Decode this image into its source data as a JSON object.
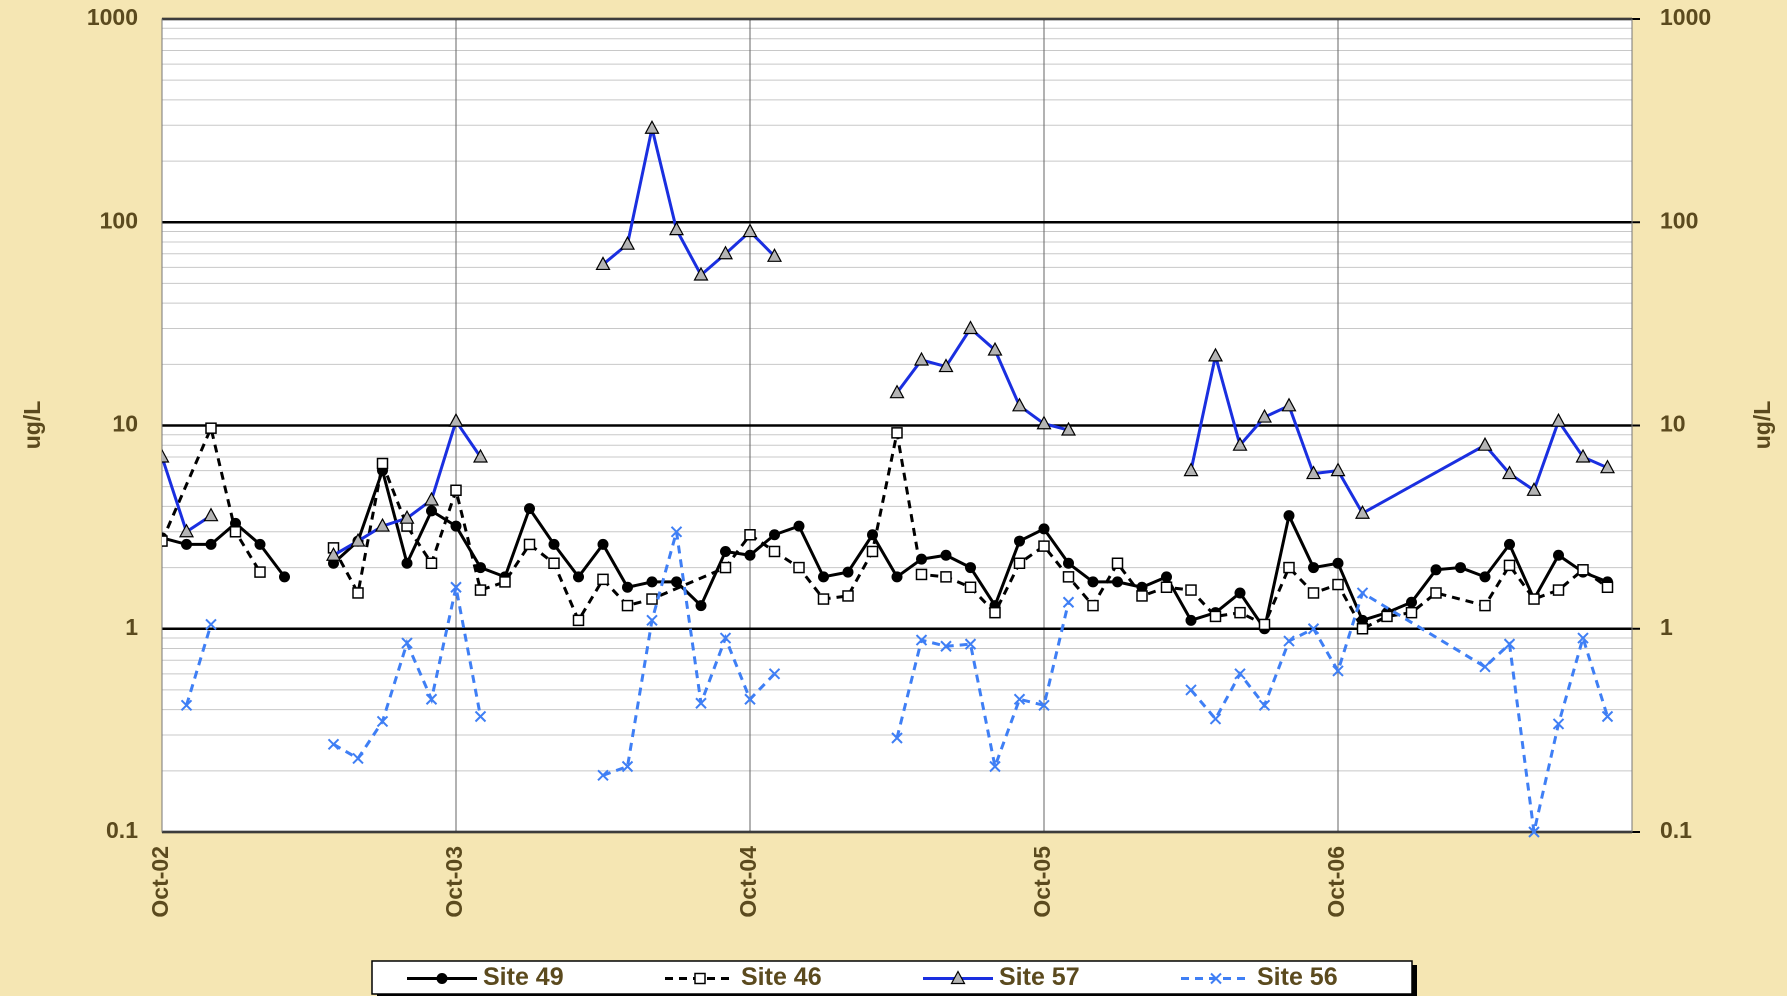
{
  "chart_data": {
    "type": "line",
    "ylabel": "ug/L",
    "y2label": "ug/L",
    "log_scale": true,
    "grid": true,
    "minor_grid": true,
    "legend": "bottom",
    "xlim": [
      "2002-10",
      "2007-10"
    ],
    "xticks": [
      {
        "value": "2002-10",
        "label": "Oct-02"
      },
      {
        "value": "2003-10",
        "label": "Oct-03"
      },
      {
        "value": "2004-10",
        "label": "Oct-04"
      },
      {
        "value": "2005-10",
        "label": "Oct-05"
      },
      {
        "value": "2006-10",
        "label": "Oct-06"
      }
    ],
    "ylim": [
      0.1,
      1000
    ],
    "yticks": [
      0.1,
      1,
      10,
      100,
      1000
    ],
    "y2lim": [
      0.1,
      1000
    ],
    "y2ticks": [
      0.1,
      1,
      10,
      100,
      1000
    ],
    "series": [
      {
        "name": "Site 49",
        "color": "#000000",
        "line_style": "solid",
        "marker": "circle",
        "x": [
          "2002-10",
          "2002-11",
          "2002-12",
          "2003-01",
          "2003-02",
          "2003-03",
          "2003-04",
          "2003-05",
          "2003-06",
          "2003-07",
          "2003-08",
          "2003-09",
          "2003-10",
          "2003-11",
          "2003-12",
          "2004-01",
          "2004-02",
          "2004-03",
          "2004-04",
          "2004-05",
          "2004-06",
          "2004-07",
          "2004-08",
          "2004-09",
          "2004-10",
          "2004-11",
          "2004-12",
          "2005-01",
          "2005-02",
          "2005-03",
          "2005-04",
          "2005-05",
          "2005-06",
          "2005-07",
          "2005-08",
          "2005-09",
          "2005-10",
          "2005-11",
          "2005-12",
          "2006-01",
          "2006-02",
          "2006-03",
          "2006-04",
          "2006-05",
          "2006-06",
          "2006-07",
          "2006-08",
          "2006-09",
          "2006-10",
          "2006-11",
          "2006-12",
          "2007-01",
          "2007-02",
          "2007-03",
          "2007-04",
          "2007-05",
          "2007-06",
          "2007-07",
          "2007-08",
          "2007-09"
        ],
        "values": [
          2.8,
          2.6,
          2.6,
          3.3,
          2.6,
          1.8,
          null,
          2.1,
          2.7,
          6.0,
          2.1,
          3.8,
          3.2,
          2.0,
          1.8,
          3.9,
          2.6,
          1.8,
          2.6,
          1.6,
          1.7,
          1.7,
          1.3,
          2.4,
          2.3,
          2.9,
          3.2,
          1.8,
          1.9,
          2.9,
          1.8,
          2.2,
          2.3,
          2.0,
          1.3,
          2.7,
          3.1,
          2.1,
          1.7,
          1.7,
          1.6,
          1.8,
          1.1,
          1.2,
          1.5,
          1.0,
          3.6,
          2.0,
          2.1,
          1.1,
          1.2,
          1.35,
          1.95,
          2.0,
          1.8,
          2.6,
          1.4,
          2.3,
          1.9,
          1.7
        ]
      },
      {
        "name": "Site 46",
        "color": "#000000",
        "line_style": "dashed",
        "marker": "square",
        "x": [
          "2002-10",
          "2002-12",
          "2003-01",
          "2003-02",
          "2003-03",
          "2003-05",
          "2003-06",
          "2003-07",
          "2003-08",
          "2003-09",
          "2003-10",
          "2003-11",
          "2003-12",
          "2004-01",
          "2004-02",
          "2004-03",
          "2004-04",
          "2004-05",
          "2004-06",
          "2004-09",
          "2004-10",
          "2004-11",
          "2004-12",
          "2005-01",
          "2005-02",
          "2005-03",
          "2005-04",
          "2005-05",
          "2005-06",
          "2005-07",
          "2005-08",
          "2005-09",
          "2005-10",
          "2005-11",
          "2005-12",
          "2006-01",
          "2006-02",
          "2006-03",
          "2006-04",
          "2006-05",
          "2006-06",
          "2006-07",
          "2006-08",
          "2006-09",
          "2006-10",
          "2006-11",
          "2006-12",
          "2007-01",
          "2007-02",
          "2007-04",
          "2007-05",
          "2007-06",
          "2007-07",
          "2007-08",
          "2007-09"
        ],
        "values": [
          2.7,
          9.7,
          3.0,
          1.9,
          null,
          2.5,
          1.5,
          6.5,
          3.2,
          2.1,
          4.8,
          1.55,
          1.7,
          2.6,
          2.1,
          1.1,
          1.75,
          1.3,
          1.4,
          2.0,
          2.9,
          2.4,
          2.0,
          1.4,
          1.45,
          2.4,
          9.2,
          1.85,
          1.8,
          1.6,
          1.2,
          2.1,
          2.55,
          1.8,
          1.3,
          2.1,
          1.45,
          1.6,
          1.55,
          1.15,
          1.2,
          1.05,
          2.0,
          1.5,
          1.65,
          1.0,
          1.15,
          1.2,
          1.5,
          1.3,
          2.05,
          1.4,
          1.55,
          1.95,
          1.6
        ]
      },
      {
        "name": "Site 57",
        "color": "#1a2fe0",
        "line_style": "solid",
        "marker": "triangle",
        "x": [
          "2002-10",
          "2002-11",
          "2002-12",
          "2003-01",
          "2003-05",
          "2003-06",
          "2003-07",
          "2003-08",
          "2003-09",
          "2003-10",
          "2003-11",
          "2003-12",
          "2004-04",
          "2004-05",
          "2004-06",
          "2004-07",
          "2004-08",
          "2004-09",
          "2004-10",
          "2004-11",
          "2004-12",
          "2005-04",
          "2005-05",
          "2005-06",
          "2005-07",
          "2005-08",
          "2005-09",
          "2005-10",
          "2005-11",
          "2005-12",
          "2006-04",
          "2006-05",
          "2006-06",
          "2006-07",
          "2006-08",
          "2006-09",
          "2006-10",
          "2006-11",
          "2007-04",
          "2007-05",
          "2007-06",
          "2007-07",
          "2007-08",
          "2007-09"
        ],
        "values": [
          7.0,
          3.0,
          3.6,
          null,
          2.3,
          2.7,
          3.2,
          3.5,
          4.3,
          10.5,
          7.0,
          null,
          62,
          78,
          290,
          92,
          55,
          70,
          90,
          68,
          null,
          14.5,
          21,
          19.5,
          30,
          23.5,
          12.5,
          10.2,
          9.5,
          null,
          6.0,
          22,
          8.0,
          11,
          12.5,
          5.8,
          6.0,
          3.7,
          8.0,
          5.8,
          4.8,
          10.5,
          7.0,
          6.2
        ]
      },
      {
        "name": "Site 56",
        "color": "#3f7ff5",
        "line_style": "dashed",
        "marker": "x",
        "x": [
          "2002-11",
          "2002-12",
          "2003-01",
          "2003-05",
          "2003-06",
          "2003-07",
          "2003-08",
          "2003-09",
          "2003-10",
          "2003-11",
          "2003-12",
          "2004-04",
          "2004-05",
          "2004-06",
          "2004-07",
          "2004-08",
          "2004-09",
          "2004-10",
          "2004-11",
          "2004-12",
          "2005-04",
          "2005-05",
          "2005-06",
          "2005-07",
          "2005-08",
          "2005-09",
          "2005-10",
          "2005-11",
          "2005-12",
          "2006-04",
          "2006-05",
          "2006-06",
          "2006-07",
          "2006-08",
          "2006-09",
          "2006-10",
          "2006-11",
          "2007-04",
          "2007-05",
          "2007-06",
          "2007-07",
          "2007-08",
          "2007-09"
        ],
        "values": [
          0.42,
          1.05,
          null,
          0.27,
          0.23,
          0.35,
          0.85,
          0.45,
          1.6,
          0.37,
          null,
          0.19,
          0.21,
          1.1,
          3.0,
          0.43,
          0.9,
          0.45,
          0.6,
          null,
          0.29,
          0.88,
          0.82,
          0.84,
          0.21,
          0.45,
          0.42,
          1.35,
          null,
          0.5,
          0.36,
          0.6,
          0.42,
          0.87,
          1.0,
          0.62,
          1.5,
          0.65,
          0.84,
          0.1,
          0.34,
          0.9,
          0.37
        ]
      }
    ]
  }
}
